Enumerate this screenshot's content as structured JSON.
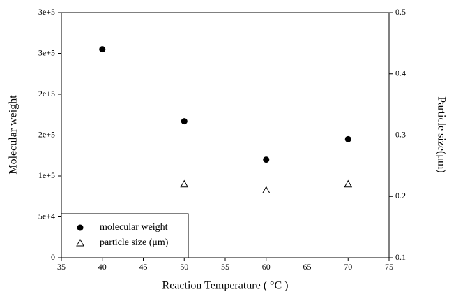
{
  "chart_data": {
    "type": "scatter",
    "x_label": "Reaction Temperature ( °C )",
    "y_label": "Molecular weight",
    "y2_label": "Particle size(μm)",
    "x": [
      40,
      50,
      60,
      70
    ],
    "series": [
      {
        "name": "molecular weight",
        "color": "#000000",
        "marker": "filled-circle",
        "values": [
          255000,
          167000,
          120000,
          145000
        ]
      },
      {
        "name": "particle size (μm)",
        "color": "#000000",
        "marker": "open-triangle",
        "axis": "y2",
        "values": [
          null,
          0.22,
          0.21,
          0.22
        ]
      }
    ],
    "xlim": [
      35,
      75
    ],
    "xticks": [
      35,
      40,
      45,
      50,
      55,
      60,
      65,
      70,
      75
    ],
    "ylim": [
      0,
      300000
    ],
    "yticks": [
      0,
      {
        "value": 50000,
        "label": "5e+4"
      },
      {
        "value": 100000,
        "label": "1e+5"
      },
      {
        "value": 150000,
        "label": "2e+5"
      },
      {
        "value": 200000,
        "label": "2e+5"
      },
      {
        "value": 250000,
        "label": "3e+5"
      },
      {
        "value": 300000,
        "label": "3e+5"
      }
    ],
    "y2lim": [
      0.1,
      0.5
    ],
    "y2ticks": [
      0.1,
      0.2,
      0.3,
      0.4,
      0.5
    ],
    "grid": false,
    "legend": "lower-left"
  }
}
